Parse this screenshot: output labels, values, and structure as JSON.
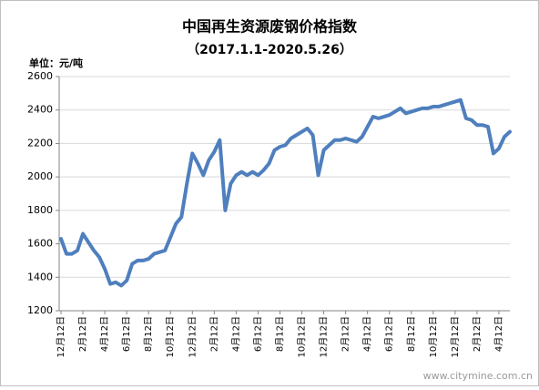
{
  "chart_data": {
    "type": "line",
    "title": "中国再生资源废钢价格指数",
    "subtitle": "（2017.1.1-2020.5.26）",
    "y_label": "单位：元/吨",
    "watermark": "www.citymine.com.cn",
    "categories": [
      "12月12日",
      null,
      null,
      null,
      "2月12日",
      null,
      null,
      null,
      "4月12日",
      null,
      null,
      null,
      "6月12日",
      null,
      null,
      null,
      "8月12日",
      null,
      null,
      null,
      "10月12日",
      null,
      null,
      null,
      "12月12日",
      null,
      null,
      null,
      "2月12日",
      null,
      null,
      null,
      "4月12日",
      null,
      null,
      null,
      "6月12日",
      null,
      null,
      null,
      "8月12日",
      null,
      null,
      null,
      "10月12日",
      null,
      null,
      null,
      "12月12日",
      null,
      null,
      null,
      "2月12日",
      null,
      null,
      null,
      "4月12日",
      null,
      null,
      null,
      "6月12日",
      null,
      null,
      null,
      "8月12日",
      null,
      null,
      null,
      "10月12日",
      null,
      null,
      null,
      "12月12日",
      null,
      null,
      null,
      "2月12日",
      null,
      null,
      null,
      "4月12日",
      null,
      null
    ],
    "series": [
      {
        "name": "废钢价格指数",
        "color": "#4f7fbd",
        "values": [
          1630,
          1540,
          1540,
          1560,
          1660,
          1610,
          1560,
          1520,
          1450,
          1360,
          1370,
          1350,
          1380,
          1480,
          1500,
          1500,
          1510,
          1540,
          1550,
          1560,
          1640,
          1720,
          1760,
          1960,
          2140,
          2080,
          2010,
          2100,
          2150,
          2220,
          1800,
          1960,
          2010,
          2030,
          2010,
          2030,
          2010,
          2040,
          2080,
          2160,
          2180,
          2190,
          2230,
          2250,
          2270,
          2290,
          2250,
          2010,
          2160,
          2190,
          2220,
          2220,
          2230,
          2220,
          2210,
          2240,
          2300,
          2360,
          2350,
          2360,
          2370,
          2390,
          2410,
          2380,
          2390,
          2400,
          2410,
          2410,
          2420,
          2420,
          2430,
          2440,
          2450,
          2460,
          2350,
          2340,
          2310,
          2310,
          2300,
          2140,
          2170,
          2240,
          2270
        ]
      }
    ],
    "ylim": [
      1200,
      2600
    ],
    "yticks": [
      1200,
      1400,
      1600,
      1800,
      2000,
      2200,
      2400,
      2600
    ],
    "grid": true,
    "legend": false
  }
}
